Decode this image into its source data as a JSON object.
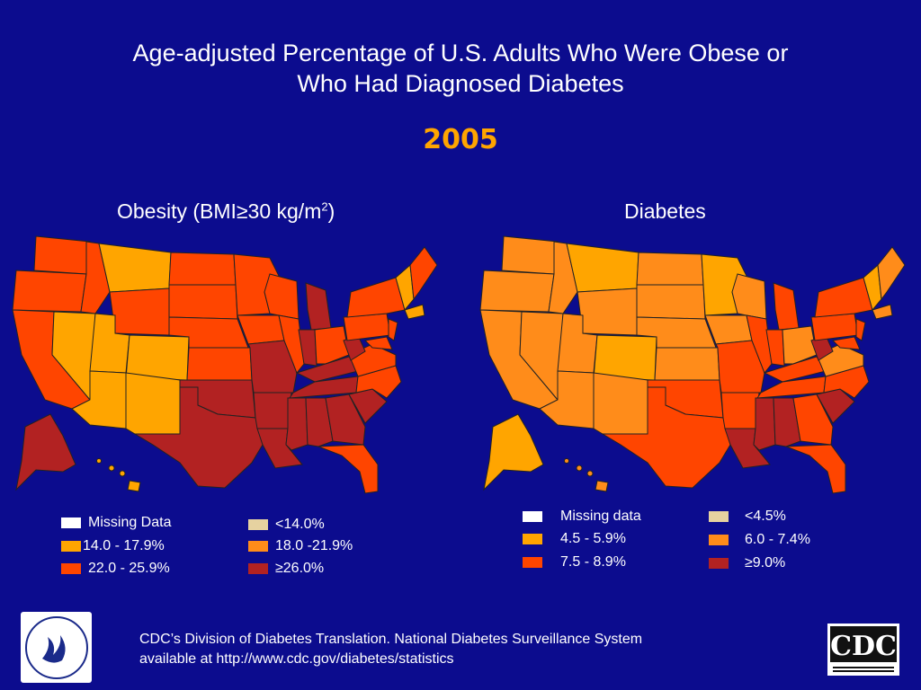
{
  "header": {
    "title_line1": "Age-adjusted Percentage of U.S. Adults Who Were Obese or",
    "title_line2": "Who Had Diagnosed Diabetes",
    "year": "2005"
  },
  "maps": {
    "obesity": {
      "title": "Obesity (BMI≥30 kg/m",
      "title_sup": "2",
      "title_close": ")",
      "legend": [
        {
          "label": "Missing Data",
          "color": "#ffffff"
        },
        {
          "label": "<14.0%",
          "color": "#e6d2a0"
        },
        {
          "label": "14.0 - 17.9%",
          "color": "#ffa500"
        },
        {
          "label": "18.0 -21.9%",
          "color": "#ff8c1a"
        },
        {
          "label": "22.0 - 25.9%",
          "color": "#ff4500"
        },
        {
          "label": "≥26.0%",
          "color": "#b22222"
        }
      ]
    },
    "diabetes": {
      "title": "Diabetes",
      "legend": [
        {
          "label": "Missing data",
          "color": "#ffffff"
        },
        {
          "label": "<4.5%",
          "color": "#e6d2a0"
        },
        {
          "label": "4.5 - 5.9%",
          "color": "#ffa500"
        },
        {
          "label": "6.0 - 7.4%",
          "color": "#ff8c1a"
        },
        {
          "label": "7.5 - 8.9%",
          "color": "#ff4500"
        },
        {
          "label": "≥9.0%",
          "color": "#b22222"
        }
      ]
    }
  },
  "footer": {
    "line1": "CDC’s Division of Diabetes Translation.  National Diabetes Surveillance System",
    "line2": "available at http://www.cdc.gov/diabetes/statistics"
  },
  "logos": {
    "hhs": "hhs-seal-icon",
    "cdc": "CDC"
  }
}
